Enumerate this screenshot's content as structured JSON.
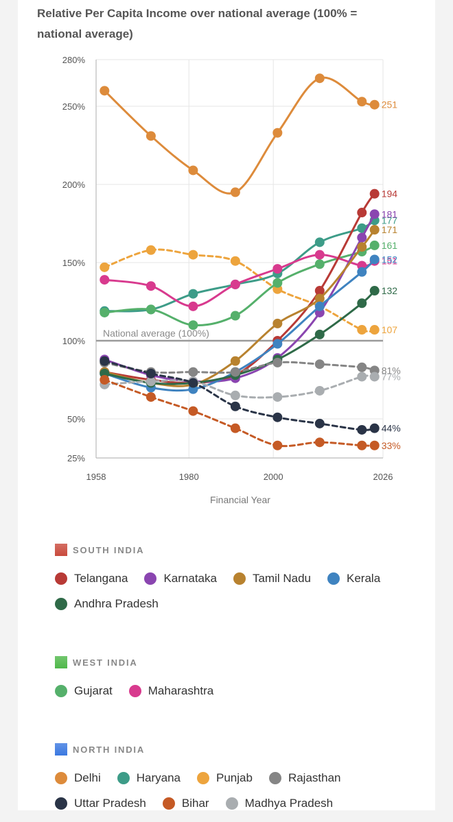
{
  "chart_data": {
    "type": "line",
    "title": "Relative Per Capita Income over national average (100% = national average)",
    "xlabel": "Financial Year",
    "ylabel": "",
    "x_ticks": [
      1958,
      1980,
      2000,
      2026
    ],
    "y_ticks": [
      25,
      50,
      100,
      150,
      200,
      250,
      280
    ],
    "y_tick_labels": [
      "25%",
      "50%",
      "100%",
      "150%",
      "200%",
      "250%",
      "280%"
    ],
    "xlim": [
      1958,
      2026
    ],
    "reference_line": {
      "value": 100,
      "label": "National average (100%)"
    },
    "grid": true,
    "series": [
      {
        "name": "Delhi",
        "region": "NORTH INDIA",
        "color": "#dd8b3b",
        "dash": false,
        "end_label": "251",
        "x": [
          1960,
          1971,
          1981,
          1991,
          2001,
          2011,
          2021,
          2024
        ],
        "y": [
          260,
          231,
          209,
          195,
          233,
          268,
          253,
          251
        ]
      },
      {
        "name": "Punjab",
        "region": "NORTH INDIA",
        "color": "#eda43d",
        "dash": true,
        "end_label": "107",
        "x": [
          1960,
          1971,
          1981,
          1991,
          2001,
          2011,
          2021,
          2024
        ],
        "y": [
          147,
          158,
          155,
          151,
          133,
          122,
          107,
          107
        ]
      },
      {
        "name": "Haryana",
        "region": "NORTH INDIA",
        "color": "#3d9c88",
        "dash": false,
        "end_label": "177",
        "x": [
          1960,
          1971,
          1981,
          1991,
          2001,
          2011,
          2021,
          2024
        ],
        "y": [
          119,
          120,
          130,
          136,
          143,
          163,
          172,
          177
        ]
      },
      {
        "name": "Gujarat",
        "region": "WEST INDIA",
        "color": "#55b06b",
        "dash": false,
        "end_label": "161",
        "x": [
          1960,
          1971,
          1981,
          1991,
          2001,
          2011,
          2021,
          2024
        ],
        "y": [
          118,
          120,
          110,
          116,
          137,
          149,
          157,
          161
        ]
      },
      {
        "name": "Maharashtra",
        "region": "WEST INDIA",
        "color": "#d83a8e",
        "dash": false,
        "end_label": "151",
        "x": [
          1960,
          1971,
          1981,
          1991,
          2001,
          2011,
          2021,
          2024
        ],
        "y": [
          139,
          135,
          122,
          136,
          146,
          155,
          148,
          151
        ]
      },
      {
        "name": "Telangana",
        "region": "SOUTH INDIA",
        "color": "#b83a36",
        "dash": false,
        "end_label": "194",
        "x": [
          1960,
          1971,
          1981,
          1991,
          2001,
          2011,
          2021,
          2024
        ],
        "y": [
          80,
          75,
          73,
          78,
          100,
          132,
          182,
          194
        ]
      },
      {
        "name": "Karnataka",
        "region": "SOUTH INDIA",
        "color": "#8a45b0",
        "dash": false,
        "end_label": "181",
        "x": [
          1960,
          1971,
          1981,
          1991,
          2001,
          2011,
          2021,
          2024
        ],
        "y": [
          88,
          78,
          74,
          76,
          89,
          118,
          166,
          181
        ]
      },
      {
        "name": "Tamil Nadu",
        "region": "SOUTH INDIA",
        "color": "#b8822f",
        "dash": false,
        "end_label": "171",
        "x": [
          1960,
          1971,
          1981,
          1991,
          2001,
          2011,
          2021,
          2024
        ],
        "y": [
          80,
          73,
          72,
          87,
          111,
          127,
          160,
          171
        ]
      },
      {
        "name": "Kerala",
        "region": "SOUTH INDIA",
        "color": "#3f83c0",
        "dash": false,
        "end_label": "152",
        "x": [
          1960,
          1971,
          1981,
          1991,
          2001,
          2011,
          2021,
          2024
        ],
        "y": [
          79,
          70,
          69,
          80,
          98,
          122,
          144,
          152
        ]
      },
      {
        "name": "Andhra Pradesh",
        "region": "SOUTH INDIA",
        "color": "#2f6a48",
        "dash": false,
        "end_label": "132",
        "x": [
          1960,
          1971,
          1981,
          1991,
          2001,
          2011,
          2021,
          2024
        ],
        "y": [
          79,
          73,
          73,
          78,
          88,
          104,
          124,
          132
        ]
      },
      {
        "name": "Rajasthan",
        "region": "NORTH INDIA",
        "color": "#858585",
        "dash": true,
        "end_label": "81%",
        "x": [
          1960,
          1971,
          1981,
          1991,
          2001,
          2011,
          2021,
          2024
        ],
        "y": [
          86,
          80,
          80,
          80,
          86,
          85,
          83,
          81
        ]
      },
      {
        "name": "Madhya Pradesh",
        "region": "NORTH INDIA",
        "color": "#a9adb0",
        "dash": true,
        "end_label": "77%",
        "x": [
          1960,
          1971,
          1981,
          1991,
          2001,
          2011,
          2021,
          2024
        ],
        "y": [
          72,
          74,
          74,
          65,
          64,
          68,
          77,
          77
        ]
      },
      {
        "name": "Uttar Pradesh",
        "region": "NORTH INDIA",
        "color": "#2a3447",
        "dash": true,
        "end_label": "44%",
        "x": [
          1960,
          1971,
          1981,
          1991,
          2001,
          2011,
          2021,
          2024
        ],
        "y": [
          87,
          79,
          73,
          58,
          51,
          47,
          43,
          44
        ]
      },
      {
        "name": "Bihar",
        "region": "NORTH INDIA",
        "color": "#c55a25",
        "dash": true,
        "end_label": "33%",
        "x": [
          1960,
          1971,
          1981,
          1991,
          2001,
          2011,
          2021,
          2024
        ],
        "y": [
          75,
          64,
          55,
          44,
          33,
          35,
          33,
          33
        ]
      }
    ]
  },
  "legend": {
    "groups": [
      {
        "label": "SOUTH INDIA",
        "color": "#c94a3c",
        "items": [
          {
            "name": "Telangana",
            "color": "#b83a36"
          },
          {
            "name": "Karnataka",
            "color": "#8a45b0"
          },
          {
            "name": "Tamil Nadu",
            "color": "#b8822f"
          },
          {
            "name": "Kerala",
            "color": "#3f83c0"
          },
          {
            "name": "Andhra Pradesh",
            "color": "#2f6a48"
          }
        ]
      },
      {
        "label": "WEST INDIA",
        "color": "#4fb84a",
        "items": [
          {
            "name": "Gujarat",
            "color": "#55b06b"
          },
          {
            "name": "Maharashtra",
            "color": "#d83a8e"
          }
        ]
      },
      {
        "label": "NORTH INDIA",
        "color": "#3a78e0",
        "items": [
          {
            "name": "Delhi",
            "color": "#dd8b3b"
          },
          {
            "name": "Haryana",
            "color": "#3d9c88"
          },
          {
            "name": "Punjab",
            "color": "#eda43d"
          },
          {
            "name": "Rajasthan",
            "color": "#858585"
          },
          {
            "name": "Uttar Pradesh",
            "color": "#2a3447"
          },
          {
            "name": "Bihar",
            "color": "#c55a25"
          },
          {
            "name": "Madhya Pradesh",
            "color": "#a9adb0"
          }
        ]
      }
    ]
  }
}
